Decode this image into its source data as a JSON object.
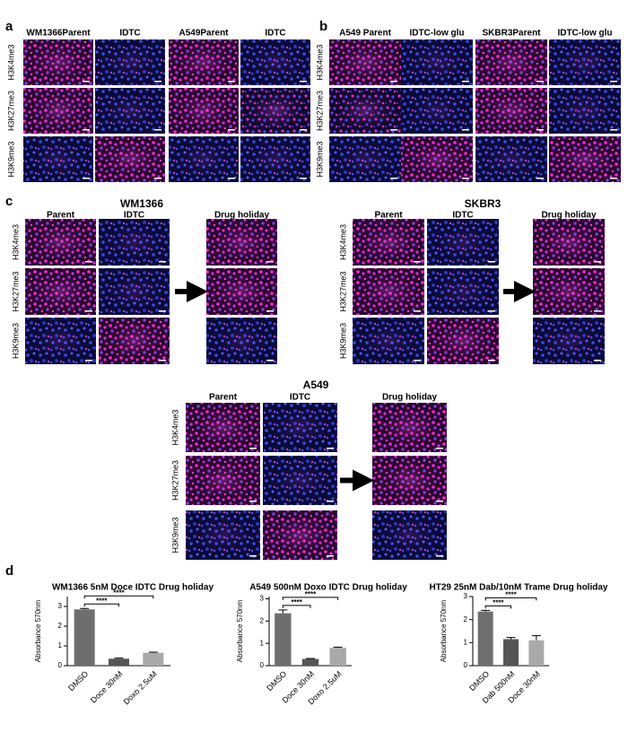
{
  "panel_a": {
    "label": "a",
    "headers": [
      "WM1366Parent",
      "IDTC",
      "A549Parent",
      "IDTC"
    ],
    "rows": [
      "H3K4me3",
      "H3K27me3",
      "H3K9me3"
    ]
  },
  "panel_b": {
    "label": "b",
    "headers": [
      "A549 Parent",
      "IDTC-low glu",
      "SKBR3Parent",
      "IDTC-low glu"
    ],
    "rows": [
      "H3K4me3",
      "H3K27me3",
      "H3K9me3"
    ]
  },
  "panel_c": {
    "label": "c",
    "groups": [
      {
        "title": "WM1366",
        "headers": [
          "Parent",
          "IDTC",
          "Drug holiday"
        ],
        "rows": [
          "H3K4me3",
          "H3K27me3",
          "H3K9me3"
        ]
      },
      {
        "title": "SKBR3",
        "headers": [
          "Parent",
          "IDTC",
          "Drug holiday"
        ],
        "rows": [
          "H3K4me3",
          "H3K27me3",
          "H3K9me3"
        ]
      },
      {
        "title": "A549",
        "headers": [
          "Parent",
          "IDTC",
          "Drug holiday"
        ],
        "rows": [
          "H3K4me3",
          "H3K27me3",
          "H3K9me3"
        ]
      }
    ]
  },
  "panel_d": {
    "label": "d"
  },
  "chart_data": [
    {
      "type": "bar",
      "title": "WM1366 5nM Doce IDTC Drug holiday",
      "ylabel": "Absorbance 570nm",
      "categories": [
        "DMSO",
        "Doce 30nM",
        "Doxo 2.5uM"
      ],
      "values": [
        2.85,
        0.35,
        0.65
      ],
      "errors": [
        0.05,
        0.03,
        0.03
      ],
      "colors": [
        "#6e6e6e",
        "#555555",
        "#a9a9a9"
      ],
      "ylim": [
        0,
        3.5
      ],
      "yticks": [
        0,
        1,
        2,
        3
      ],
      "annotations": [
        "****",
        "****"
      ]
    },
    {
      "type": "bar",
      "title": "A549 500nM Doxo IDTC Drug holiday",
      "ylabel": "Absorbance 570nm",
      "categories": [
        "DMSO",
        "Doce 30nM",
        "Doxo 2.5uM"
      ],
      "values": [
        2.35,
        0.3,
        0.8
      ],
      "errors": [
        0.15,
        0.02,
        0.03
      ],
      "colors": [
        "#6e6e6e",
        "#555555",
        "#a9a9a9"
      ],
      "ylim": [
        0,
        3.1
      ],
      "yticks": [
        0,
        1,
        2,
        3
      ],
      "annotations": [
        "****",
        "****"
      ]
    },
    {
      "type": "bar",
      "title": "HT29 25nM Dab/10nM Trame Drug holiday",
      "ylabel": "Absorbance 570nm",
      "categories": [
        "DMSO",
        "Dab 500nM",
        "Doce 30nM"
      ],
      "values": [
        2.35,
        1.15,
        1.1
      ],
      "errors": [
        0.05,
        0.07,
        0.2
      ],
      "colors": [
        "#6e6e6e",
        "#555555",
        "#a9a9a9"
      ],
      "ylim": [
        0,
        3
      ],
      "yticks": [
        0,
        1,
        2,
        3
      ],
      "annotations": [
        "****",
        "****"
      ]
    }
  ]
}
